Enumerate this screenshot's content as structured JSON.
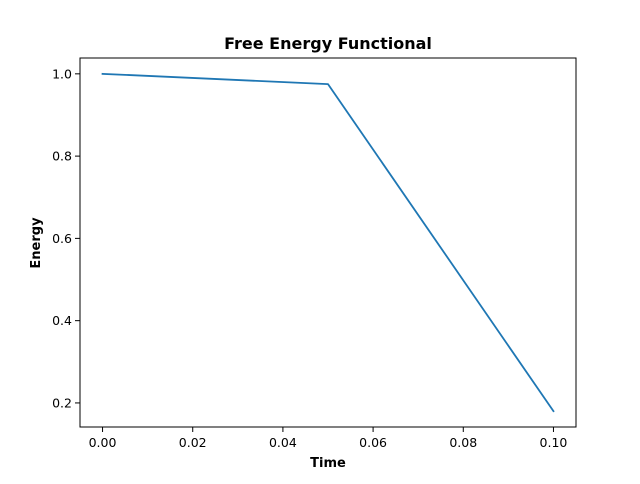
{
  "chart_data": {
    "type": "line",
    "title": "Free Energy Functional",
    "xlabel": "Time",
    "ylabel": "Energy",
    "xlim": [
      -0.005,
      0.105
    ],
    "ylim": [
      0.1415,
      1.0385
    ],
    "xticks": [
      0.0,
      0.02,
      0.04,
      0.06,
      0.08,
      0.1
    ],
    "xtick_labels": [
      "0.00",
      "0.02",
      "0.04",
      "0.06",
      "0.08",
      "0.10"
    ],
    "yticks": [
      0.2,
      0.4,
      0.6,
      0.8,
      1.0
    ],
    "ytick_labels": [
      "0.2",
      "0.4",
      "0.6",
      "0.8",
      "1.0"
    ],
    "grid": false,
    "legend": "none",
    "series": [
      {
        "color": "#1f77b4",
        "x": [
          0.0,
          0.05,
          0.1
        ],
        "y": [
          1.0,
          0.975,
          0.18
        ]
      }
    ]
  }
}
